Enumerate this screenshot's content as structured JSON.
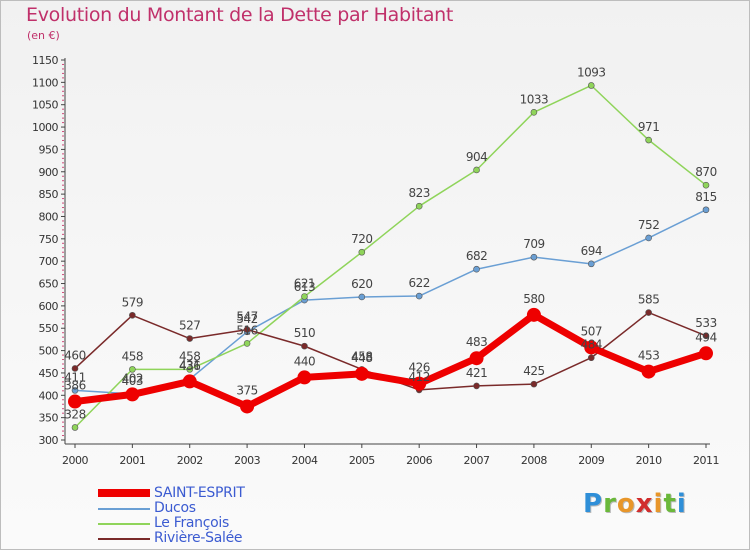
{
  "header": {
    "title": "Evolution du Montant de la Dette par Habitant",
    "subtitle": "(en €)"
  },
  "logo": {
    "letters": [
      "P",
      "r",
      "o",
      "x",
      "i",
      "t",
      "i"
    ],
    "colors": [
      "#2f8fd8",
      "#6ab83a",
      "#e8962a",
      "#d12d2d",
      "#e8962a",
      "#6ab83a",
      "#2f8fd8"
    ]
  },
  "chart_data": {
    "type": "line",
    "title": "Evolution du Montant de la Dette par Habitant",
    "subtitle": "(en €)",
    "xlabel": "",
    "ylabel": "",
    "categories": [
      "2000",
      "2001",
      "2002",
      "2003",
      "2004",
      "2005",
      "2006",
      "2007",
      "2008",
      "2009",
      "2010",
      "2011"
    ],
    "ylim": [
      300,
      1150
    ],
    "yticks": [
      300,
      350,
      400,
      450,
      500,
      550,
      600,
      650,
      700,
      750,
      800,
      850,
      900,
      950,
      1000,
      1050,
      1100,
      1150
    ],
    "grid": false,
    "legend_position": "bottom-left",
    "series": [
      {
        "name": "SAINT-ESPRIT",
        "color": "#ee0000",
        "emphasis": true,
        "values": [
          386,
          402,
          431,
          375,
          440,
          448,
          426,
          483,
          580,
          507,
          453,
          494
        ]
      },
      {
        "name": "Ducos",
        "color": "#6a9fd4",
        "emphasis": false,
        "values": [
          411,
          403,
          436,
          542,
          613,
          620,
          622,
          682,
          709,
          694,
          752,
          815
        ]
      },
      {
        "name": "Le François",
        "color": "#8fd45a",
        "emphasis": false,
        "values": [
          328,
          458,
          458,
          516,
          621,
          720,
          823,
          904,
          1033,
          1093,
          971,
          870
        ]
      },
      {
        "name": "Rivière-Salée",
        "color": "#7a2a2a",
        "emphasis": false,
        "values": [
          460,
          579,
          527,
          547,
          510,
          458,
          412,
          421,
          425,
          484,
          585,
          533
        ]
      }
    ]
  }
}
